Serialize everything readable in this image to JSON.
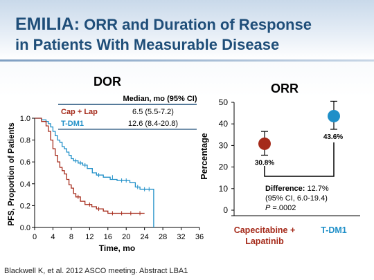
{
  "slide": {
    "title_bold": "EMILIA:",
    "title_rest": " ORR and Duration of Response",
    "title_line2": "in Patients With Measurable Disease",
    "footer": "Blackwell K, et al. 2012 ASCO meeting. Abstract LBA1"
  },
  "chart_data": [
    {
      "type": "line",
      "title": "DOR",
      "xlabel": "Time, mo",
      "ylabel": "PFS, Proportion of Patients",
      "xlim": [
        0,
        36
      ],
      "ylim": [
        0,
        1.0
      ],
      "x_ticks": [
        0,
        4,
        8,
        12,
        16,
        20,
        24,
        28,
        32,
        36
      ],
      "y_ticks": [
        "0.0",
        "0.2",
        "0.4",
        "0.6",
        "0.8",
        "1.0"
      ],
      "legend_table": {
        "header": "Median, mo (95% CI)",
        "rows": [
          {
            "name": "Cap + Lap",
            "value": "6.5 (5.5-7.2)",
            "color": "#a52a1a"
          },
          {
            "name": "T-DM1",
            "value": "12.6 (8.4-20.8)",
            "color": "#1f8fc8"
          }
        ]
      },
      "series": [
        {
          "name": "T-DM1",
          "color": "#1f8fc8",
          "points": [
            [
              0,
              1
            ],
            [
              1.5,
              1
            ],
            [
              1.5,
              0.985
            ],
            [
              2.5,
              0.985
            ],
            [
              2.5,
              0.97
            ],
            [
              3,
              0.97
            ],
            [
              3,
              0.95
            ],
            [
              3.5,
              0.95
            ],
            [
              3.5,
              0.92
            ],
            [
              4,
              0.92
            ],
            [
              4,
              0.88
            ],
            [
              4.5,
              0.88
            ],
            [
              4.5,
              0.84
            ],
            [
              5,
              0.84
            ],
            [
              5,
              0.8
            ],
            [
              5.5,
              0.8
            ],
            [
              5.5,
              0.78
            ],
            [
              6,
              0.78
            ],
            [
              6,
              0.74
            ],
            [
              6.5,
              0.74
            ],
            [
              6.5,
              0.72
            ],
            [
              7,
              0.72
            ],
            [
              7,
              0.69
            ],
            [
              7.5,
              0.69
            ],
            [
              7.5,
              0.66
            ],
            [
              8,
              0.66
            ],
            [
              8,
              0.63
            ],
            [
              8.5,
              0.63
            ],
            [
              8.5,
              0.61
            ],
            [
              9.5,
              0.61
            ],
            [
              9.5,
              0.59
            ],
            [
              10.5,
              0.59
            ],
            [
              10.5,
              0.57
            ],
            [
              11.5,
              0.57
            ],
            [
              11.5,
              0.54
            ],
            [
              12.6,
              0.54
            ],
            [
              12.6,
              0.5
            ],
            [
              13.5,
              0.5
            ],
            [
              13.5,
              0.48
            ],
            [
              15,
              0.48
            ],
            [
              15,
              0.46
            ],
            [
              16.5,
              0.46
            ],
            [
              16.5,
              0.44
            ],
            [
              18,
              0.44
            ],
            [
              18,
              0.43
            ],
            [
              20.8,
              0.43
            ],
            [
              20.8,
              0.41
            ],
            [
              22,
              0.41
            ],
            [
              22,
              0.37
            ],
            [
              23,
              0.37
            ],
            [
              23,
              0.35
            ],
            [
              26,
              0.35
            ],
            [
              26,
              0
            ]
          ],
          "censors": [
            [
              9,
              0.61
            ],
            [
              10,
              0.59
            ],
            [
              11,
              0.57
            ],
            [
              14,
              0.48
            ],
            [
              17,
              0.46
            ],
            [
              19,
              0.43
            ],
            [
              20,
              0.43
            ],
            [
              22.5,
              0.37
            ],
            [
              24,
              0.35
            ],
            [
              25,
              0.35
            ]
          ]
        },
        {
          "name": "Cap + Lap",
          "color": "#a52a1a",
          "points": [
            [
              0,
              1
            ],
            [
              1.5,
              1
            ],
            [
              1.5,
              0.97
            ],
            [
              2.5,
              0.97
            ],
            [
              2.5,
              0.93
            ],
            [
              3,
              0.93
            ],
            [
              3,
              0.88
            ],
            [
              3.5,
              0.88
            ],
            [
              3.5,
              0.8
            ],
            [
              4,
              0.8
            ],
            [
              4,
              0.72
            ],
            [
              4.5,
              0.72
            ],
            [
              4.5,
              0.66
            ],
            [
              5,
              0.66
            ],
            [
              5,
              0.6
            ],
            [
              5.5,
              0.6
            ],
            [
              5.5,
              0.55
            ],
            [
              6,
              0.55
            ],
            [
              6,
              0.52
            ],
            [
              6.5,
              0.52
            ],
            [
              6.5,
              0.49
            ],
            [
              7,
              0.49
            ],
            [
              7,
              0.44
            ],
            [
              7.5,
              0.44
            ],
            [
              7.5,
              0.39
            ],
            [
              8,
              0.39
            ],
            [
              8,
              0.36
            ],
            [
              8.5,
              0.36
            ],
            [
              8.5,
              0.31
            ],
            [
              9,
              0.31
            ],
            [
              9,
              0.28
            ],
            [
              10,
              0.28
            ],
            [
              10,
              0.24
            ],
            [
              11,
              0.24
            ],
            [
              11,
              0.21
            ],
            [
              12.5,
              0.21
            ],
            [
              12.5,
              0.19
            ],
            [
              13.5,
              0.19
            ],
            [
              13.5,
              0.17
            ],
            [
              15,
              0.17
            ],
            [
              15,
              0.15
            ],
            [
              16,
              0.15
            ],
            [
              16,
              0.13
            ],
            [
              24,
              0.13
            ]
          ],
          "censors": [
            [
              9.5,
              0.28
            ],
            [
              12,
              0.21
            ],
            [
              14,
              0.17
            ],
            [
              17,
              0.13
            ],
            [
              19,
              0.13
            ],
            [
              21,
              0.13
            ],
            [
              23,
              0.13
            ]
          ]
        }
      ]
    },
    {
      "type": "scatter",
      "title": "ORR",
      "ylabel": "Percentage",
      "ylim": [
        0,
        50
      ],
      "y_ticks": [
        0,
        10,
        20,
        30,
        40,
        50
      ],
      "categories": [
        "Capecitabine + Lapatinib",
        "T-DM1"
      ],
      "points": [
        {
          "category": "Capecitabine + Lapatinib",
          "value": 30.8,
          "label": "30.8%",
          "ci": [
            25.5,
            36.5
          ],
          "color": "#a52a1a"
        },
        {
          "category": "T-DM1",
          "value": 43.6,
          "label": "43.6%",
          "ci": [
            37.5,
            50.5
          ],
          "color": "#1f8fc8"
        }
      ],
      "annotation": {
        "line1_bold": "Difference:",
        "line1_rest": " 12.7%",
        "line2": "(95% CI, 6.0-19.4)",
        "line3_italic": "P",
        "line3_rest": " =.0002"
      }
    }
  ]
}
